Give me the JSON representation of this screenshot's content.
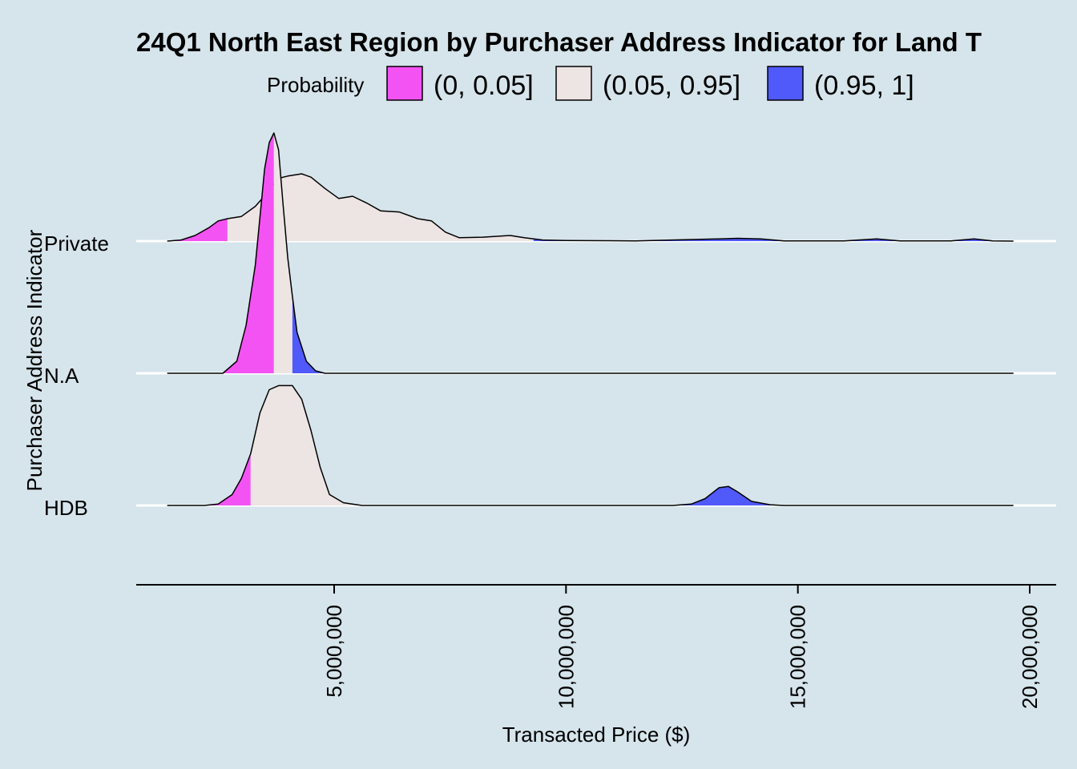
{
  "chart_data": {
    "type": "density_ridges",
    "title": "24Q1 North East Region by Purchaser Address Indicator for Land T",
    "xlabel": "Transacted Price ($)",
    "ylabel": "Purchaser Address Indicator",
    "categories": [
      "Private",
      "N.A",
      "HDB"
    ],
    "x_ticks": [
      5000000,
      10000000,
      15000000,
      20000000
    ],
    "x_tick_labels": [
      "5,000,000",
      "10,000,000",
      "15,000,000",
      "20,000,000"
    ],
    "xlim": [
      500000,
      20500000
    ],
    "legend": {
      "title": "Probability",
      "placement": "top",
      "items": [
        {
          "label": "(0, 0.05]",
          "color": "#f453f4"
        },
        {
          "label": "(0.05, 0.95]",
          "color": "#ede4e4"
        },
        {
          "label": "(0.95, 1]",
          "color": "#5059fa"
        }
      ]
    },
    "series": [
      {
        "category": "Private",
        "quantile_05": 2700000,
        "quantile_95": 9300000,
        "density_profile": [
          [
            1400000,
            0.0
          ],
          [
            1700000,
            0.01
          ],
          [
            2000000,
            0.05
          ],
          [
            2300000,
            0.12
          ],
          [
            2500000,
            0.18
          ],
          [
            2700000,
            0.2
          ],
          [
            3000000,
            0.22
          ],
          [
            3300000,
            0.31
          ],
          [
            3600000,
            0.45
          ],
          [
            3800000,
            0.56
          ],
          [
            4000000,
            0.58
          ],
          [
            4300000,
            0.6
          ],
          [
            4500000,
            0.57
          ],
          [
            4800000,
            0.47
          ],
          [
            5100000,
            0.38
          ],
          [
            5400000,
            0.4
          ],
          [
            5700000,
            0.34
          ],
          [
            6000000,
            0.27
          ],
          [
            6400000,
            0.26
          ],
          [
            6800000,
            0.2
          ],
          [
            7100000,
            0.18
          ],
          [
            7400000,
            0.08
          ],
          [
            7700000,
            0.03
          ],
          [
            8200000,
            0.035
          ],
          [
            8800000,
            0.05
          ],
          [
            9100000,
            0.03
          ],
          [
            9500000,
            0.01
          ],
          [
            10000000,
            0.005
          ],
          [
            11500000,
            0.002
          ],
          [
            13300000,
            0.02
          ],
          [
            13700000,
            0.025
          ],
          [
            14200000,
            0.02
          ],
          [
            14700000,
            0.002
          ],
          [
            16000000,
            0.002
          ],
          [
            16700000,
            0.02
          ],
          [
            17200000,
            0.002
          ],
          [
            18300000,
            0.002
          ],
          [
            18800000,
            0.02
          ],
          [
            19200000,
            0.002
          ],
          [
            19650000,
            0.0
          ]
        ]
      },
      {
        "category": "N.A",
        "quantile_05": 3700000,
        "quantile_95": 4100000,
        "density_profile": [
          [
            1400000,
            0.0
          ],
          [
            2600000,
            0.0
          ],
          [
            2900000,
            0.05
          ],
          [
            3100000,
            0.2
          ],
          [
            3300000,
            0.45
          ],
          [
            3500000,
            0.85
          ],
          [
            3600000,
            0.96
          ],
          [
            3700000,
            1.0
          ],
          [
            3800000,
            0.93
          ],
          [
            3900000,
            0.7
          ],
          [
            4000000,
            0.48
          ],
          [
            4100000,
            0.32
          ],
          [
            4200000,
            0.17
          ],
          [
            4400000,
            0.05
          ],
          [
            4600000,
            0.01
          ],
          [
            4800000,
            0.0
          ],
          [
            19650000,
            0.0
          ]
        ]
      },
      {
        "category": "HDB",
        "quantile_05": 3200000,
        "quantile_95": 12500000,
        "density_profile": [
          [
            1400000,
            0.0
          ],
          [
            2200000,
            0.0
          ],
          [
            2500000,
            0.01
          ],
          [
            2800000,
            0.08
          ],
          [
            3000000,
            0.2
          ],
          [
            3200000,
            0.38
          ],
          [
            3400000,
            0.68
          ],
          [
            3600000,
            0.85
          ],
          [
            3800000,
            0.88
          ],
          [
            4100000,
            0.88
          ],
          [
            4300000,
            0.78
          ],
          [
            4500000,
            0.55
          ],
          [
            4700000,
            0.28
          ],
          [
            4900000,
            0.08
          ],
          [
            5200000,
            0.02
          ],
          [
            5600000,
            0.0
          ],
          [
            12300000,
            0.0
          ],
          [
            12700000,
            0.01
          ],
          [
            13000000,
            0.05
          ],
          [
            13300000,
            0.13
          ],
          [
            13500000,
            0.14
          ],
          [
            13700000,
            0.1
          ],
          [
            14000000,
            0.03
          ],
          [
            14400000,
            0.005
          ],
          [
            14700000,
            0.0
          ],
          [
            19650000,
            0.0
          ]
        ]
      }
    ]
  }
}
